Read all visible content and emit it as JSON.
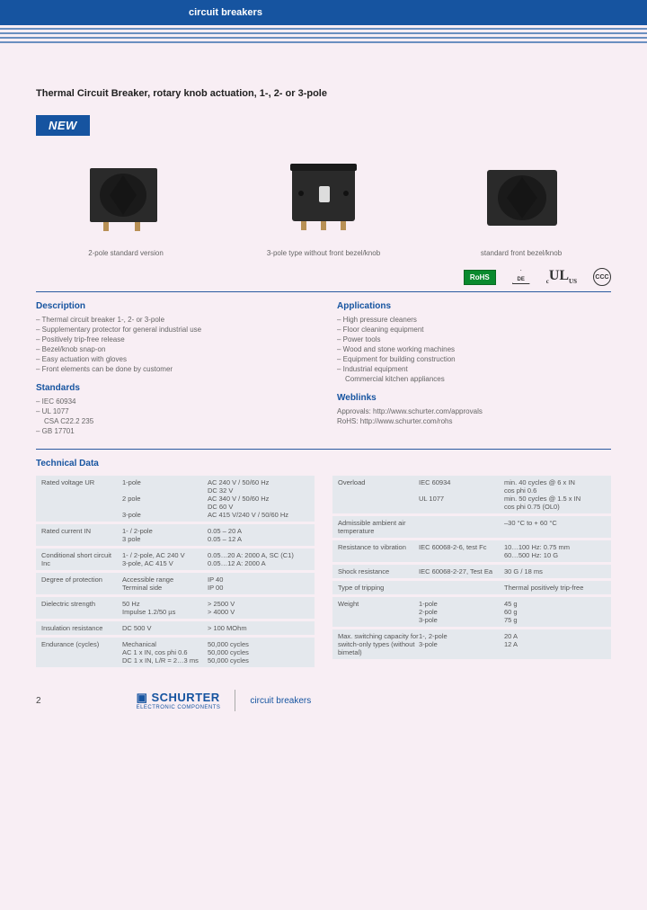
{
  "header": {
    "category": "circuit breakers"
  },
  "page": {
    "title": "Thermal Circuit Breaker, rotary knob actuation, 1-, 2- or 3-pole",
    "new_badge": "NEW",
    "page_number": "2"
  },
  "products": [
    {
      "caption": "2-pole standard version"
    },
    {
      "caption": "3-pole type without front bezel/knob"
    },
    {
      "caption": "standard front bezel/knob"
    }
  ],
  "certs": {
    "rohs": "RoHS",
    "vde": "DE",
    "ul_c": "c",
    "ul": "UL",
    "ul_us": "US",
    "ccc": "CCC"
  },
  "description": {
    "title": "Description",
    "items": [
      "Thermal circuit breaker 1-, 2- or 3-pole",
      "Supplementary protector for general industrial use",
      "Positively trip-free release",
      "Bezel/knob snap-on",
      "Easy actuation with gloves",
      "Front elements can be done by customer"
    ]
  },
  "applications": {
    "title": "Applications",
    "items": [
      "High pressure cleaners",
      "Floor cleaning equipment",
      "Power tools",
      "Wood and stone working machines",
      "Equipment for building construction",
      "Industrial equipment"
    ],
    "extra": "Commercial kitchen appliances"
  },
  "standards": {
    "title": "Standards",
    "items": [
      "IEC 60934",
      "UL 1077",
      "CSA C22.2 235",
      "GB 17701"
    ]
  },
  "weblinks": {
    "title": "Weblinks",
    "approvals": "Approvals: http://www.schurter.com/approvals",
    "rohs": "RoHS: http://www.schurter.com/rohs"
  },
  "tech": {
    "title": "Technical Data",
    "left": [
      {
        "c1": "Rated voltage UR",
        "c2": "1-pole\n\n2 pole\n\n3-pole",
        "c3": "AC 240 V / 50/60 Hz\nDC 32 V\nAC 340 V / 50/60 Hz\nDC 60 V\nAC 415 V/240 V / 50/60 Hz"
      },
      {
        "c1": "Rated current IN",
        "c2": "1- / 2-pole\n3 pole",
        "c3": "0.05 – 20 A\n0.05 – 12 A"
      },
      {
        "c1": "Conditional short circuit Inc",
        "c2": "1- / 2-pole, AC 240 V\n3-pole, AC 415 V",
        "c3": "0.05…20 A: 2000 A, SC (C1)\n0.05…12 A: 2000 A"
      },
      {
        "c1": "Degree of protection",
        "c2": "Accessible range\nTerminal side",
        "c3": "IP 40\nIP 00"
      },
      {
        "c1": "Dielectric strength",
        "c2": "50 Hz\nImpulse 1.2/50 µs",
        "c3": "> 2500 V\n> 4000 V"
      },
      {
        "c1": "Insulation resistance",
        "c2": "DC 500 V",
        "c3": "> 100 MOhm"
      },
      {
        "c1": "Endurance (cycles)",
        "c2": "Mechanical\nAC 1 x IN, cos phi 0.6\nDC 1 x IN, L/R = 2…3 ms",
        "c3": "50,000 cycles\n50,000 cycles\n50,000 cycles"
      }
    ],
    "right": [
      {
        "c1": "Overload",
        "c2": "IEC 60934\n\nUL 1077",
        "c3": "min. 40 cycles @ 6 x IN\ncos phi 0.6\nmin. 50 cycles @ 1.5 x IN\ncos phi 0.75 (OL0)"
      },
      {
        "c1": "Admissible ambient air temperature",
        "c2": "",
        "c3": "–30 °C to + 60 °C"
      },
      {
        "c1": "Resistance to vibration",
        "c2": "IEC 60068-2-6, test Fc",
        "c3": "10…100 Hz: 0.75 mm\n60…500 Hz: 10 G"
      },
      {
        "c1": "Shock resistance",
        "c2": "IEC 60068-2-27, Test Ea",
        "c3": "30 G / 18 ms"
      },
      {
        "c1": "Type of tripping",
        "c2": "",
        "c3": "Thermal positively trip-free"
      },
      {
        "c1": "Weight",
        "c2": "1-pole\n2-pole\n3-pole",
        "c3": "45 g\n60 g\n75 g"
      },
      {
        "c1": "Max. switching capacity for switch-only types (without bimetal)",
        "c2": "1-, 2-pole\n3-pole",
        "c3": "20 A\n12 A"
      }
    ]
  },
  "footer": {
    "brand": "SCHURTER",
    "tagline": "ELECTRONIC COMPONENTS",
    "category": "circuit breakers"
  },
  "colors": {
    "primary": "#1654a0",
    "bg": "#f8eef4",
    "row_bg": "#e4e8ed",
    "text_muted": "#666"
  }
}
